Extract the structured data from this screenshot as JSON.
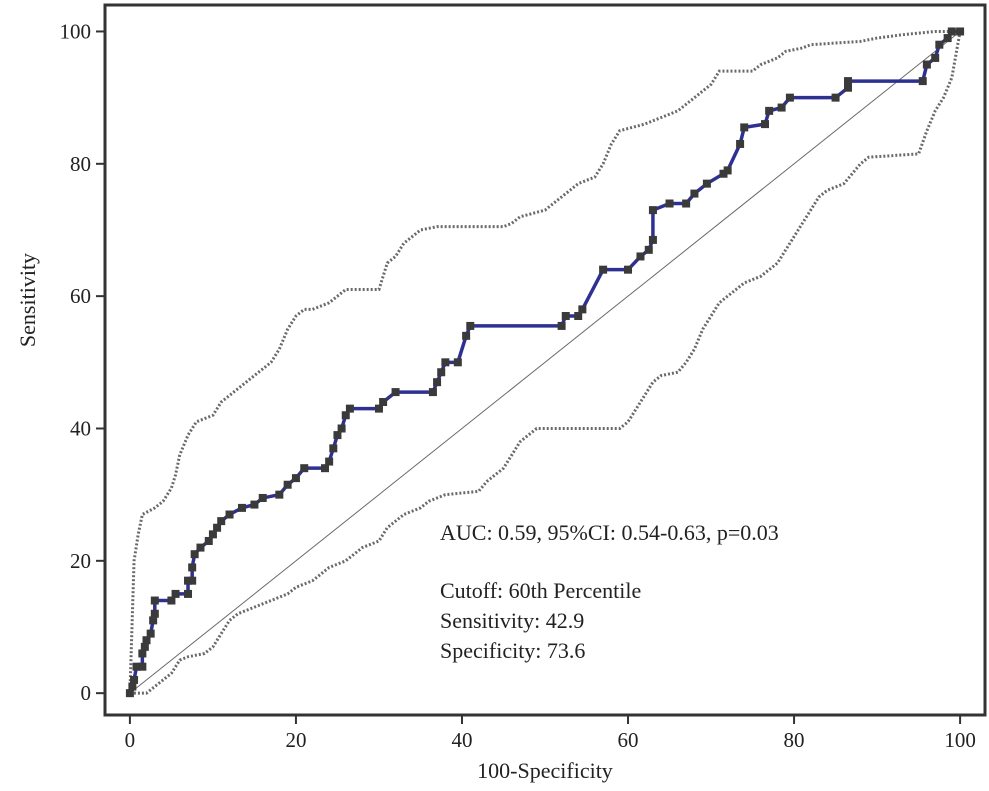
{
  "chart_data": {
    "type": "line",
    "x_label": "100-Specificity",
    "y_label": "Sensitivity",
    "xlim": [
      -3,
      103
    ],
    "ylim": [
      -3.3,
      104
    ],
    "xticks": [
      0,
      20,
      40,
      60,
      80,
      100
    ],
    "yticks": [
      0,
      20,
      40,
      60,
      80,
      100
    ],
    "annotations": [
      "AUC: 0.59, 95%CI: 0.54-0.63, p=0.03",
      "Cutoff: 60th Percentile",
      "Sensitivity: 42.9",
      "Specificity: 73.6"
    ],
    "series": [
      {
        "color": "#6a6a6a",
        "style": "thin",
        "markers": false,
        "x": [
          0,
          100
        ],
        "values": [
          0,
          100
        ]
      },
      {
        "color": "#6a6a6a",
        "style": "dotted",
        "markers": false,
        "x": [
          0,
          0.5,
          1,
          1.5,
          3,
          4,
          5,
          5.5,
          6,
          7,
          8,
          10,
          11,
          12,
          14,
          16,
          17,
          18,
          19,
          20,
          21,
          22,
          24,
          25,
          26,
          30,
          31,
          32,
          33,
          35,
          37,
          45,
          46,
          47,
          50,
          52,
          54,
          56,
          57,
          58,
          59,
          62,
          64,
          66,
          68,
          69,
          70,
          71,
          75,
          76,
          78,
          79,
          81,
          82,
          88,
          90,
          93,
          97,
          100
        ],
        "values": [
          0,
          20,
          24,
          27,
          28,
          29,
          31,
          33,
          36,
          39,
          41,
          42,
          44,
          45,
          47,
          49,
          50,
          52,
          55,
          57,
          58,
          58,
          59,
          60,
          61,
          61,
          65,
          66,
          68,
          70,
          70.5,
          70.5,
          71,
          72,
          73,
          75,
          77,
          78,
          80,
          83,
          85,
          86,
          87,
          88,
          90,
          91,
          92,
          94,
          94,
          95,
          96,
          97,
          97.5,
          98,
          98.5,
          99,
          99.5,
          100,
          100
        ]
      },
      {
        "color": "#6a6a6a",
        "style": "dotted",
        "markers": false,
        "x": [
          0,
          2,
          3,
          5,
          6,
          7,
          9,
          10,
          11,
          12,
          13,
          15,
          17,
          19,
          20,
          22,
          24,
          26,
          28,
          30,
          31,
          32,
          33,
          35,
          36,
          38,
          42,
          43,
          44,
          45,
          46,
          47,
          48,
          49,
          59,
          60,
          61,
          62,
          63,
          64,
          66,
          67,
          68,
          69,
          70,
          71,
          73,
          74,
          76,
          78,
          79,
          80,
          81,
          82,
          83,
          84,
          86,
          88,
          89,
          95,
          96,
          97,
          98,
          99,
          100
        ],
        "values": [
          0,
          0,
          1,
          3,
          5,
          5.5,
          6,
          7,
          9,
          11,
          12,
          13,
          14,
          15,
          16,
          17,
          19,
          20,
          22,
          23,
          25,
          26,
          27,
          28,
          29,
          30,
          30.5,
          32,
          33,
          34,
          36,
          38,
          39,
          40,
          40,
          41,
          43,
          45,
          47,
          48,
          48.5,
          50,
          52,
          55,
          57,
          59,
          61,
          62,
          63,
          65,
          67,
          69,
          71,
          73,
          75,
          76,
          77,
          80,
          81,
          81.5,
          85,
          88,
          90,
          93,
          100
        ]
      },
      {
        "color": "#2e3192",
        "style": "thick",
        "markers": true,
        "marker_color": "#3a3a3a",
        "x": [
          0,
          0.3,
          0.5,
          0.8,
          1.5,
          1.5,
          1.8,
          2,
          2.5,
          2.8,
          3,
          3,
          5,
          5.5,
          7,
          7,
          7.5,
          7.5,
          7.8,
          8.5,
          9.5,
          10,
          10.5,
          11,
          12,
          13.5,
          15,
          16,
          18,
          19,
          20,
          21,
          23.5,
          24,
          24.5,
          25,
          25.5,
          26,
          26.5,
          30,
          30.5,
          32,
          36.5,
          37,
          37.5,
          38,
          39.5,
          40.5,
          41,
          52,
          52.5,
          54,
          54.5,
          57,
          60,
          61.5,
          62.5,
          63,
          63,
          65,
          67,
          68,
          69.5,
          71.5,
          72,
          73.5,
          74,
          76.5,
          77,
          78.5,
          79.5,
          85,
          86.5,
          86.5,
          95.5,
          96,
          97,
          97.5,
          98.5,
          99,
          100
        ],
        "values": [
          0,
          1,
          2,
          4,
          4,
          6,
          7,
          8,
          9,
          11,
          12,
          14,
          14,
          15,
          15,
          17,
          17,
          19,
          21,
          22,
          23,
          24,
          25,
          26,
          27,
          28,
          28.5,
          29.5,
          30,
          31.5,
          32.5,
          34,
          34,
          35,
          37,
          39,
          40,
          42,
          43,
          43,
          44,
          45.5,
          45.5,
          47,
          48.5,
          50,
          50,
          54,
          55.5,
          55.5,
          57,
          57,
          58,
          64,
          64,
          66,
          67,
          68.5,
          73,
          74,
          74,
          75.5,
          77,
          78.5,
          79,
          83,
          85.5,
          86,
          88,
          88.5,
          90,
          90,
          91.5,
          92.5,
          92.5,
          95,
          96,
          98,
          99,
          100,
          100
        ]
      }
    ]
  }
}
